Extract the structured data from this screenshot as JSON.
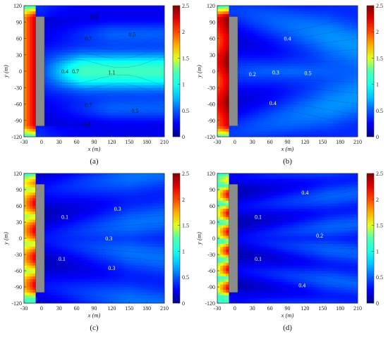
{
  "chart_data": [
    {
      "type": "heatmap",
      "caption": "(a)",
      "xlabel": "x (m)",
      "ylabel": "y (m)",
      "xlim": [
        -30,
        210
      ],
      "ylim": [
        -120,
        120
      ],
      "xticks": [
        "-30",
        "0",
        "30",
        "60",
        "90",
        "120",
        "150",
        "180",
        "210"
      ],
      "yticks": [
        "-120",
        "-90",
        "-60",
        "-30",
        "0",
        "30",
        "60",
        "90",
        "120"
      ],
      "colorbar": {
        "min": 0,
        "max": 2.5,
        "ticks": [
          "0",
          "0.5",
          "1",
          "1.5",
          "2",
          "2.5"
        ]
      },
      "structure": {
        "x0": -10,
        "x1": 5,
        "y0": -100,
        "y1": 100
      },
      "contour_labels": [
        {
          "text": "0.4",
          "x": 90,
          "y": 100
        },
        {
          "text": "0.7",
          "x": 80,
          "y": 60
        },
        {
          "text": "0.5",
          "x": 155,
          "y": 68
        },
        {
          "text": "0.4",
          "x": 40,
          "y": 0
        },
        {
          "text": "0.7",
          "x": 58,
          "y": 0
        },
        {
          "text": "1.1",
          "x": 120,
          "y": -2
        },
        {
          "text": "0.7",
          "x": 80,
          "y": -62
        },
        {
          "text": "0.5",
          "x": 160,
          "y": -72
        },
        {
          "text": "0.4",
          "x": 78,
          "y": -97
        }
      ]
    },
    {
      "type": "heatmap",
      "caption": "(b)",
      "xlabel": "x (m)",
      "ylabel": "y (m)",
      "xlim": [
        -30,
        210
      ],
      "ylim": [
        -120,
        120
      ],
      "xticks": [
        "-30",
        "0",
        "30",
        "60",
        "90",
        "120",
        "150",
        "180",
        "210"
      ],
      "yticks": [
        "-120",
        "-90",
        "-60",
        "-30",
        "0",
        "30",
        "60",
        "90",
        "120"
      ],
      "colorbar": {
        "min": 0,
        "max": 2.5,
        "ticks": [
          "0",
          "0.5",
          "1",
          "1.5",
          "2",
          "2.5"
        ]
      },
      "structure": {
        "x0": -10,
        "x1": 5,
        "y0": -100,
        "y1": 100
      },
      "contour_labels": [
        {
          "text": "0.4",
          "x": 90,
          "y": 60
        },
        {
          "text": "0.2",
          "x": 30,
          "y": -5
        },
        {
          "text": "0.3",
          "x": 70,
          "y": -2
        },
        {
          "text": "0.5",
          "x": 125,
          "y": -3
        },
        {
          "text": "0.4",
          "x": 65,
          "y": -58
        }
      ]
    },
    {
      "type": "heatmap",
      "caption": "(c)",
      "xlabel": "x (m)",
      "ylabel": "y (m)",
      "xlim": [
        -30,
        210
      ],
      "ylim": [
        -120,
        120
      ],
      "xticks": [
        "-30",
        "0",
        "30",
        "60",
        "90",
        "120",
        "150",
        "180",
        "210"
      ],
      "yticks": [
        "-120",
        "-90",
        "-60",
        "-30",
        "0",
        "30",
        "60",
        "90",
        "120"
      ],
      "colorbar": {
        "min": 0,
        "max": 2.5,
        "ticks": [
          "0",
          "0.5",
          "1",
          "1.5",
          "2",
          "2.5"
        ]
      },
      "structure": {
        "x0": -10,
        "x1": 5,
        "y0": -100,
        "y1": 100
      },
      "contour_labels": [
        {
          "text": "0.1",
          "x": 40,
          "y": 40
        },
        {
          "text": "0.3",
          "x": 130,
          "y": 55
        },
        {
          "text": "0.3",
          "x": 115,
          "y": 0
        },
        {
          "text": "0.1",
          "x": 35,
          "y": -38
        },
        {
          "text": "0.3",
          "x": 120,
          "y": -55
        }
      ]
    },
    {
      "type": "heatmap",
      "caption": "(d)",
      "xlabel": "x (m)",
      "ylabel": "y (m)",
      "xlim": [
        -30,
        210
      ],
      "ylim": [
        -120,
        120
      ],
      "xticks": [
        "-30",
        "0",
        "30",
        "60",
        "90",
        "120",
        "150",
        "180",
        "210"
      ],
      "yticks": [
        "-120",
        "-90",
        "-60",
        "-30",
        "0",
        "30",
        "60",
        "90",
        "120"
      ],
      "colorbar": {
        "min": 0,
        "max": 2.5,
        "ticks": [
          "0",
          "0.5",
          "1",
          "1.5",
          "2",
          "2.5"
        ]
      },
      "structure": {
        "x0": -10,
        "x1": 5,
        "y0": -100,
        "y1": 100
      },
      "contour_labels": [
        {
          "text": "0.4",
          "x": 120,
          "y": 85
        },
        {
          "text": "0.1",
          "x": 40,
          "y": 40
        },
        {
          "text": "0.2",
          "x": 145,
          "y": 5
        },
        {
          "text": "0.1",
          "x": 40,
          "y": -38
        },
        {
          "text": "0.4",
          "x": 115,
          "y": -87
        }
      ]
    }
  ]
}
